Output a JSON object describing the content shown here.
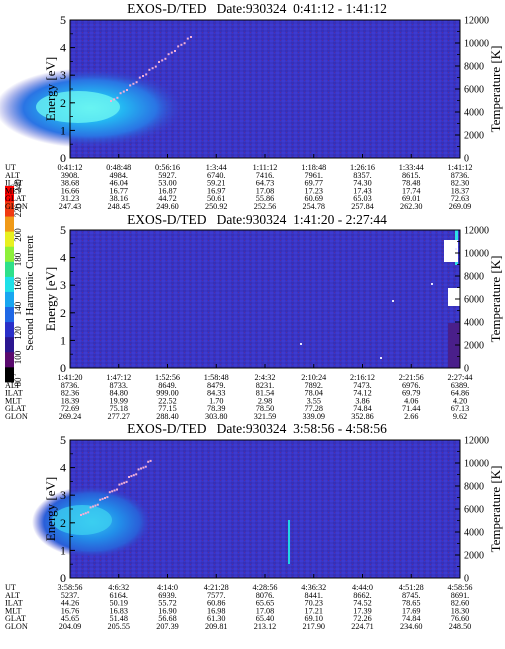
{
  "colorbar": {
    "label": "Second Harmonic Current",
    "ticks": [
      "80",
      "100",
      "120",
      "140",
      "160",
      "180",
      "200",
      "220",
      "240"
    ],
    "colors": [
      "#000000",
      "#5a0a6e",
      "#2b1690",
      "#2a2fc8",
      "#1f68e6",
      "#18a6f0",
      "#1fe0e8",
      "#2ee08a",
      "#8ef03a",
      "#e8f020",
      "#f09a18",
      "#f03a12",
      "#ff0000"
    ]
  },
  "chart_data": [
    {
      "type": "heatmap",
      "title": "EXOS-D/TED   Date:930324  0:41:12 - 1:41:12",
      "ylabel": "Energy [eV]",
      "y2label": "Temperature [K]",
      "ylim": [
        0,
        5
      ],
      "y2lim": [
        0,
        12000
      ],
      "yticks": [
        "0",
        "1",
        "2",
        "3",
        "4",
        "5"
      ],
      "y2ticks": [
        "0",
        "2000",
        "4000",
        "6000",
        "8000",
        "10000",
        "12000"
      ],
      "table": [
        {
          "label": "UT",
          "values": [
            "0:41:12",
            "0:48:48",
            "0:56:16",
            "1:3:44",
            "1:11:12",
            "1:18:48",
            "1:26:16",
            "1:33:44",
            "1:41:12"
          ]
        },
        {
          "label": "ALT",
          "values": [
            "3908.",
            "4984.",
            "5927.",
            "6740.",
            "7416.",
            "7961.",
            "8357.",
            "8615.",
            "8736."
          ]
        },
        {
          "label": "ILAT",
          "values": [
            "38.68",
            "46.04",
            "53.00",
            "59.21",
            "64.73",
            "69.77",
            "74.30",
            "78.48",
            "82.30"
          ]
        },
        {
          "label": "MLT",
          "values": [
            "16.66",
            "16.77",
            "16.87",
            "16.97",
            "17.08",
            "17.23",
            "17.43",
            "17.74",
            "18.37"
          ]
        },
        {
          "label": "GLAT",
          "values": [
            "31.23",
            "38.16",
            "44.72",
            "50.61",
            "55.86",
            "60.69",
            "65.03",
            "69.01",
            "72.63"
          ]
        },
        {
          "label": "GLON",
          "values": [
            "247.43",
            "248.45",
            "249.60",
            "250.92",
            "252.56",
            "254.78",
            "257.84",
            "262.30",
            "269.09"
          ]
        }
      ]
    },
    {
      "type": "heatmap",
      "title": "EXOS-D/TED   Date:930324  1:41:20 - 2:27:44",
      "ylabel": "Energy [eV]",
      "y2label": "Temperature [K]",
      "ylim": [
        0,
        5
      ],
      "y2lim": [
        0,
        12000
      ],
      "yticks": [
        "0",
        "1",
        "2",
        "3",
        "4",
        "5"
      ],
      "y2ticks": [
        "0",
        "2000",
        "4000",
        "6000",
        "8000",
        "10000",
        "12000"
      ],
      "table": [
        {
          "label": "UT",
          "values": [
            "1:41:20",
            "1:47:12",
            "1:52:56",
            "1:58:48",
            "2:4:32",
            "2:10:24",
            "2:16:12",
            "2:21:56",
            "2:27:44"
          ]
        },
        {
          "label": "ALT",
          "values": [
            "8736.",
            "8733.",
            "8649.",
            "8479.",
            "8231.",
            "7892.",
            "7473.",
            "6976.",
            "6389."
          ]
        },
        {
          "label": "ILAT",
          "values": [
            "82.36",
            "84.80",
            "999.00",
            "84.33",
            "81.54",
            "78.04",
            "74.12",
            "69.79",
            "64.86"
          ]
        },
        {
          "label": "MLT",
          "values": [
            "18.39",
            "19.99",
            "22.52",
            "1.70",
            "2.98",
            "3.55",
            "3.86",
            "4.06",
            "4.20"
          ]
        },
        {
          "label": "GLAT",
          "values": [
            "72.69",
            "75.18",
            "77.15",
            "78.39",
            "78.50",
            "77.28",
            "74.84",
            "71.44",
            "67.13"
          ]
        },
        {
          "label": "GLON",
          "values": [
            "269.24",
            "277.27",
            "288.40",
            "303.80",
            "321.59",
            "339.09",
            "352.86",
            "2.66",
            "9.62"
          ]
        }
      ]
    },
    {
      "type": "heatmap",
      "title": "EXOS-D/TED   Date:930324  3:58:56 - 4:58:56",
      "ylabel": "Energy [eV]",
      "y2label": "Temperature [K]",
      "ylim": [
        0,
        5
      ],
      "y2lim": [
        0,
        12000
      ],
      "yticks": [
        "0",
        "1",
        "2",
        "3",
        "4",
        "5"
      ],
      "y2ticks": [
        "0",
        "2000",
        "4000",
        "6000",
        "8000",
        "10000",
        "12000"
      ],
      "table": [
        {
          "label": "UT",
          "values": [
            "3:58:56",
            "4:6:32",
            "4:14:0",
            "4:21:28",
            "4:28:56",
            "4:36:32",
            "4:44:0",
            "4:51:28",
            "4:58:56"
          ]
        },
        {
          "label": "ALT",
          "values": [
            "5237.",
            "6164.",
            "6939.",
            "7577.",
            "8076.",
            "8441.",
            "8662.",
            "8745.",
            "8691."
          ]
        },
        {
          "label": "ILAT",
          "values": [
            "44.26",
            "50.19",
            "55.72",
            "60.86",
            "65.65",
            "70.23",
            "74.52",
            "78.65",
            "82.60"
          ]
        },
        {
          "label": "MLT",
          "values": [
            "16.76",
            "16.83",
            "16.90",
            "16.98",
            "17.08",
            "17.21",
            "17.39",
            "17.69",
            "18.30"
          ]
        },
        {
          "label": "GLAT",
          "values": [
            "45.65",
            "51.48",
            "56.68",
            "61.30",
            "65.40",
            "69.10",
            "72.26",
            "74.84",
            "76.60"
          ]
        },
        {
          "label": "GLON",
          "values": [
            "204.09",
            "205.55",
            "207.39",
            "209.81",
            "213.12",
            "217.90",
            "224.71",
            "234.60",
            "248.50"
          ]
        }
      ]
    }
  ]
}
